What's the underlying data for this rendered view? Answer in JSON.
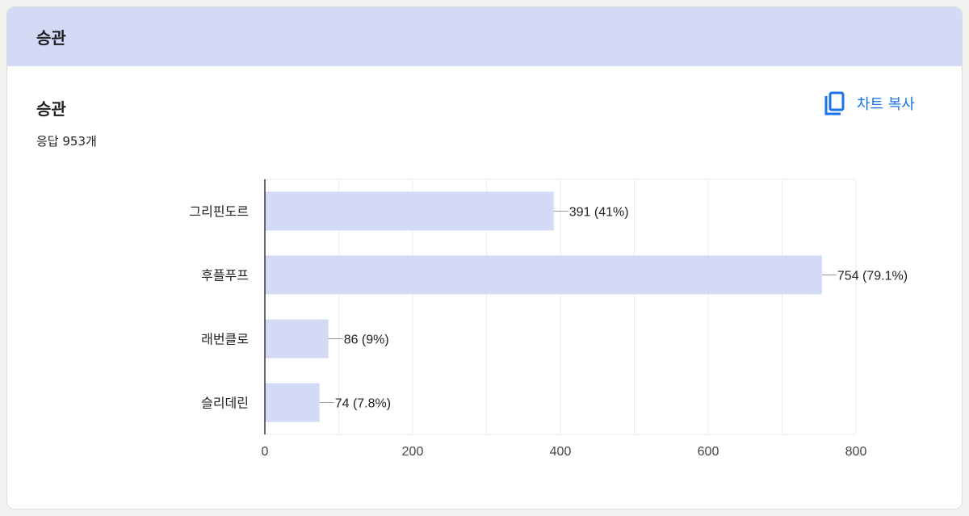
{
  "header": {
    "title": "승관"
  },
  "question": {
    "title": "승관",
    "responses": "응답 953개"
  },
  "copy_button": {
    "label": "차트 복사",
    "icon": "copy-icon",
    "color": "#1a73e8"
  },
  "chart_data": {
    "type": "bar",
    "orientation": "horizontal",
    "categories": [
      "그리핀도르",
      "후플푸프",
      "래번클로",
      "슬리데린"
    ],
    "values": [
      391,
      754,
      86,
      74
    ],
    "data_labels": [
      "391 (41%)",
      "754 (79.1%)",
      "86 (9%)",
      "74 (7.8%)"
    ],
    "xlim": [
      0,
      800
    ],
    "xticks": [
      0,
      200,
      400,
      600,
      800
    ],
    "grid": true,
    "bar_color": "#d3daf5"
  }
}
